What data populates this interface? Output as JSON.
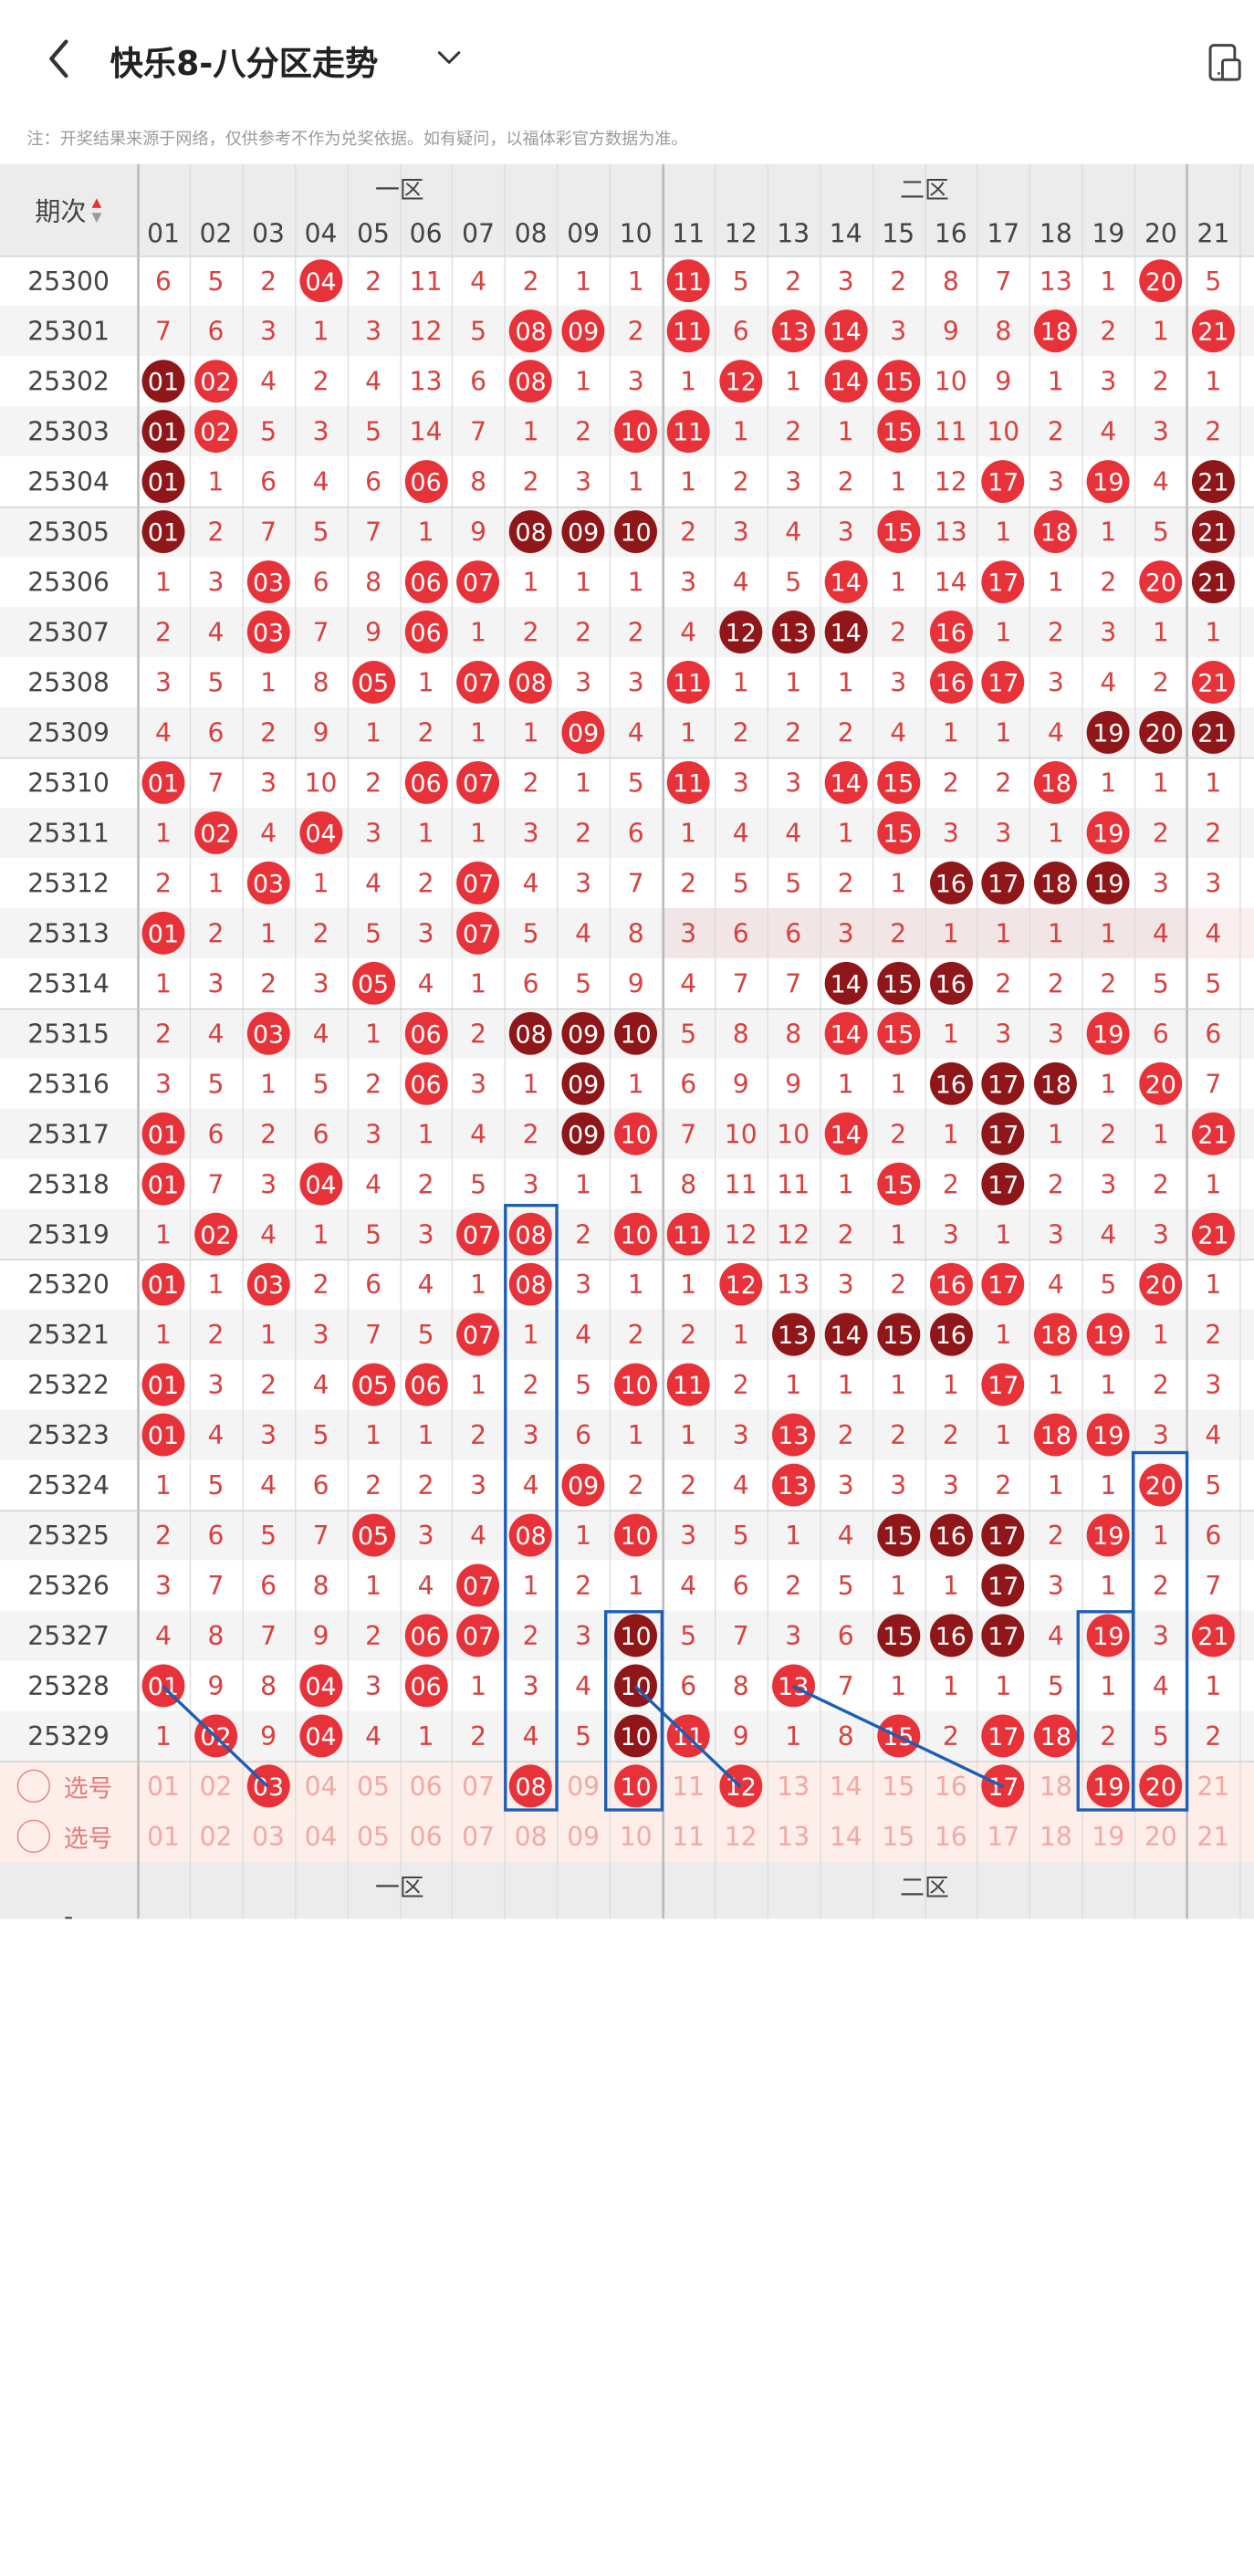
{
  "header": {
    "title": "快乐8-八分区走势",
    "back_icon": "chevron-left-icon",
    "dropdown_icon": "chevron-down-icon",
    "action_icon": "device-switch-icon"
  },
  "note": "注：开奖结果来源于网络，仅供参考不作为兑奖依据。如有疑问，以福体彩官方数据为准。",
  "table": {
    "period_header": "期次",
    "zones": [
      "一区",
      "二区"
    ],
    "columns": [
      "01",
      "02",
      "03",
      "04",
      "05",
      "06",
      "07",
      "08",
      "09",
      "10",
      "11",
      "12",
      "13",
      "14",
      "15",
      "16",
      "17",
      "18",
      "19",
      "20",
      "21"
    ],
    "rows": [
      {
        "period": "25300",
        "cells": [
          "6",
          "5",
          "2",
          "04r",
          "2",
          "11",
          "4",
          "2",
          "1",
          "1",
          "11r",
          "5",
          "2",
          "3",
          "2",
          "8",
          "7",
          "13",
          "1",
          "20r",
          "5"
        ]
      },
      {
        "period": "25301",
        "cells": [
          "7",
          "6",
          "3",
          "1",
          "3",
          "12",
          "5",
          "08r",
          "09r",
          "2",
          "11r",
          "6",
          "13r",
          "14r",
          "3",
          "9",
          "8",
          "18r",
          "2",
          "1",
          "21r"
        ]
      },
      {
        "period": "25302",
        "cells": [
          "01d",
          "02r",
          "4",
          "2",
          "4",
          "13",
          "6",
          "08r",
          "1",
          "3",
          "1",
          "12r",
          "1",
          "14r",
          "15r",
          "10",
          "9",
          "1",
          "3",
          "2",
          "1"
        ]
      },
      {
        "period": "25303",
        "cells": [
          "01d",
          "02r",
          "5",
          "3",
          "5",
          "14",
          "7",
          "1",
          "2",
          "10r",
          "11r",
          "1",
          "2",
          "1",
          "15r",
          "11",
          "10",
          "2",
          "4",
          "3",
          "2"
        ]
      },
      {
        "period": "25304",
        "cells": [
          "01d",
          "1",
          "6",
          "4",
          "6",
          "06r",
          "8",
          "2",
          "3",
          "1",
          "1",
          "2",
          "3",
          "2",
          "1",
          "12",
          "17r",
          "3",
          "19r",
          "4",
          "21d"
        ]
      },
      {
        "period": "25305",
        "cells": [
          "01d",
          "2",
          "7",
          "5",
          "7",
          "1",
          "9",
          "08d",
          "09d",
          "10d",
          "2",
          "3",
          "4",
          "3",
          "15r",
          "13",
          "1",
          "18r",
          "1",
          "5",
          "21d"
        ]
      },
      {
        "period": "25306",
        "cells": [
          "1",
          "3",
          "03r",
          "6",
          "8",
          "06r",
          "07r",
          "1",
          "1",
          "1",
          "3",
          "4",
          "5",
          "14r",
          "1",
          "14",
          "17r",
          "1",
          "2",
          "20r",
          "21d"
        ]
      },
      {
        "period": "25307",
        "cells": [
          "2",
          "4",
          "03r",
          "7",
          "9",
          "06r",
          "1",
          "2",
          "2",
          "2",
          "4",
          "12d",
          "13d",
          "14d",
          "2",
          "16r",
          "1",
          "2",
          "3",
          "1",
          "1"
        ]
      },
      {
        "period": "25308",
        "cells": [
          "3",
          "5",
          "1",
          "8",
          "05r",
          "1",
          "07r",
          "08r",
          "3",
          "3",
          "11r",
          "1",
          "1",
          "1",
          "3",
          "16r",
          "17r",
          "3",
          "4",
          "2",
          "21r"
        ]
      },
      {
        "period": "25309",
        "cells": [
          "4",
          "6",
          "2",
          "9",
          "1",
          "2",
          "1",
          "1",
          "09r",
          "4",
          "1",
          "2",
          "2",
          "2",
          "4",
          "1",
          "1",
          "4",
          "19d",
          "20d",
          "21d"
        ]
      },
      {
        "period": "25310",
        "cells": [
          "01r",
          "7",
          "3",
          "10",
          "2",
          "06r",
          "07r",
          "2",
          "1",
          "5",
          "11r",
          "3",
          "3",
          "14r",
          "15r",
          "2",
          "2",
          "18r",
          "1",
          "1",
          "1"
        ]
      },
      {
        "period": "25311",
        "cells": [
          "1",
          "02r",
          "4",
          "04r",
          "3",
          "1",
          "1",
          "3",
          "2",
          "6",
          "1",
          "4",
          "4",
          "1",
          "15r",
          "3",
          "3",
          "1",
          "19r",
          "2",
          "2"
        ]
      },
      {
        "period": "25312",
        "cells": [
          "2",
          "1",
          "03r",
          "1",
          "4",
          "2",
          "07r",
          "4",
          "3",
          "7",
          "2",
          "5",
          "5",
          "2",
          "1",
          "16d",
          "17d",
          "18d",
          "19d",
          "3",
          "3"
        ]
      },
      {
        "period": "25313",
        "cells": [
          "01r",
          "2",
          "1",
          "2",
          "5",
          "3",
          "07r",
          "5",
          "4",
          "8",
          "3",
          "6",
          "6",
          "3",
          "2",
          "1",
          "1",
          "1",
          "1",
          "4",
          "4"
        ]
      },
      {
        "period": "25314",
        "cells": [
          "1",
          "3",
          "2",
          "3",
          "05r",
          "4",
          "1",
          "6",
          "5",
          "9",
          "4",
          "7",
          "7",
          "14d",
          "15d",
          "16d",
          "2",
          "2",
          "2",
          "5",
          "5"
        ]
      },
      {
        "period": "25315",
        "cells": [
          "2",
          "4",
          "03r",
          "4",
          "1",
          "06r",
          "2",
          "08d",
          "09d",
          "10d",
          "5",
          "8",
          "8",
          "14r",
          "15r",
          "1",
          "3",
          "3",
          "19r",
          "6",
          "6"
        ]
      },
      {
        "period": "25316",
        "cells": [
          "3",
          "5",
          "1",
          "5",
          "2",
          "06r",
          "3",
          "1",
          "09d",
          "1",
          "6",
          "9",
          "9",
          "1",
          "1",
          "16d",
          "17d",
          "18d",
          "1",
          "20r",
          "7"
        ]
      },
      {
        "period": "25317",
        "cells": [
          "01r",
          "6",
          "2",
          "6",
          "3",
          "1",
          "4",
          "2",
          "09d",
          "10r",
          "7",
          "10",
          "10",
          "14r",
          "2",
          "1",
          "17d",
          "1",
          "2",
          "1",
          "21r"
        ]
      },
      {
        "period": "25318",
        "cells": [
          "01r",
          "7",
          "3",
          "04r",
          "4",
          "2",
          "5",
          "3",
          "1",
          "1",
          "8",
          "11",
          "11",
          "1",
          "15r",
          "2",
          "17d",
          "2",
          "3",
          "2",
          "1"
        ]
      },
      {
        "period": "25319",
        "cells": [
          "1",
          "02r",
          "4",
          "1",
          "5",
          "3",
          "07r",
          "08r",
          "2",
          "10r",
          "11r",
          "12",
          "12",
          "2",
          "1",
          "3",
          "1",
          "3",
          "4",
          "3",
          "21r"
        ]
      },
      {
        "period": "25320",
        "cells": [
          "01r",
          "1",
          "03r",
          "2",
          "6",
          "4",
          "1",
          "08r",
          "3",
          "1",
          "1",
          "12r",
          "13",
          "3",
          "2",
          "16r",
          "17r",
          "4",
          "5",
          "20r",
          "1"
        ]
      },
      {
        "period": "25321",
        "cells": [
          "1",
          "2",
          "1",
          "3",
          "7",
          "5",
          "07r",
          "1",
          "4",
          "2",
          "2",
          "1",
          "13d",
          "14d",
          "15d",
          "16d",
          "1",
          "18r",
          "19r",
          "1",
          "2"
        ]
      },
      {
        "period": "25322",
        "cells": [
          "01r",
          "3",
          "2",
          "4",
          "05r",
          "06r",
          "1",
          "2",
          "5",
          "10r",
          "11r",
          "2",
          "1",
          "1",
          "1",
          "1",
          "17r",
          "1",
          "1",
          "2",
          "3"
        ]
      },
      {
        "period": "25323",
        "cells": [
          "01r",
          "4",
          "3",
          "5",
          "1",
          "1",
          "2",
          "3",
          "6",
          "1",
          "1",
          "3",
          "13r",
          "2",
          "2",
          "2",
          "1",
          "18r",
          "19r",
          "3",
          "4"
        ]
      },
      {
        "period": "25324",
        "cells": [
          "1",
          "5",
          "4",
          "6",
          "2",
          "2",
          "3",
          "4",
          "09r",
          "2",
          "2",
          "4",
          "13r",
          "3",
          "3",
          "3",
          "2",
          "1",
          "1",
          "20r",
          "5"
        ]
      },
      {
        "period": "25325",
        "cells": [
          "2",
          "6",
          "5",
          "7",
          "05r",
          "3",
          "4",
          "08r",
          "1",
          "10r",
          "3",
          "5",
          "1",
          "4",
          "15d",
          "16d",
          "17d",
          "2",
          "19r",
          "1",
          "6"
        ]
      },
      {
        "period": "25326",
        "cells": [
          "3",
          "7",
          "6",
          "8",
          "1",
          "4",
          "07r",
          "1",
          "2",
          "1",
          "4",
          "6",
          "2",
          "5",
          "1",
          "1",
          "17d",
          "3",
          "1",
          "2",
          "7"
        ]
      },
      {
        "period": "25327",
        "cells": [
          "4",
          "8",
          "7",
          "9",
          "2",
          "06r",
          "07r",
          "2",
          "3",
          "10d",
          "5",
          "7",
          "3",
          "6",
          "15d",
          "16d",
          "17d",
          "4",
          "19r",
          "3",
          "21r"
        ]
      },
      {
        "period": "25328",
        "cells": [
          "01r",
          "9",
          "8",
          "04r",
          "3",
          "06r",
          "1",
          "3",
          "4",
          "10d",
          "6",
          "8",
          "13r",
          "7",
          "1",
          "1",
          "1",
          "5",
          "1",
          "4",
          "1"
        ]
      },
      {
        "period": "25329",
        "cells": [
          "1",
          "02r",
          "9",
          "04r",
          "4",
          "1",
          "2",
          "4",
          "5",
          "10d",
          "11r",
          "9",
          "1",
          "8",
          "15r",
          "2",
          "17r",
          "18r",
          "2",
          "5",
          "2"
        ]
      }
    ],
    "select_rows": [
      {
        "label": "选号",
        "cells": [
          "01",
          "02",
          "03r",
          "04",
          "05",
          "06",
          "07",
          "08r",
          "09",
          "10r",
          "11",
          "12r",
          "13",
          "14",
          "15",
          "16",
          "17r",
          "18",
          "19r",
          "20r",
          "21"
        ]
      },
      {
        "label": "选号",
        "cells": [
          "01",
          "02",
          "03",
          "04",
          "05",
          "06",
          "07",
          "08",
          "09",
          "10",
          "11",
          "12",
          "13",
          "14",
          "15",
          "16",
          "17",
          "18",
          "19",
          "20",
          "21"
        ]
      }
    ],
    "footer_zones": [
      "一区",
      "二区"
    ],
    "footer_dash": "-"
  },
  "colors": {
    "ball_red": "#e63238",
    "ball_dark": "#8f1719",
    "miss_text": "#d8413f",
    "annotation_blue": "#1a5fb4"
  }
}
